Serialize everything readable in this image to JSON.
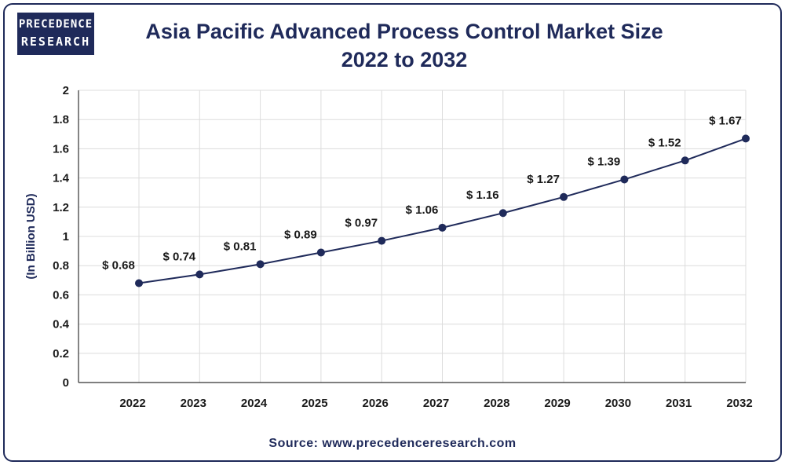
{
  "logo": {
    "line1": "PRECEDENCE",
    "line2": "RESEARCH"
  },
  "title_line1": "Asia Pacific Advanced Process Control Market Size",
  "title_line2": "2022 to 2032",
  "source": "Source: www.precedenceresearch.com",
  "colors": {
    "line": "#1f2a5a",
    "marker": "#1f2a5a",
    "grid": "#dcdcdc",
    "axis": "#333333"
  },
  "chart_data": {
    "type": "line",
    "title": "Asia Pacific Advanced Process Control Market Size 2022 to 2032",
    "xlabel": "",
    "ylabel": "(In Billion USD)",
    "categories": [
      "2022",
      "2023",
      "2024",
      "2025",
      "2026",
      "2027",
      "2028",
      "2029",
      "2030",
      "2031",
      "2032"
    ],
    "values": [
      0.68,
      0.74,
      0.81,
      0.89,
      0.97,
      1.06,
      1.16,
      1.27,
      1.39,
      1.52,
      1.67
    ],
    "data_labels": [
      "$ 0.68",
      "$ 0.74",
      "$ 0.81",
      "$ 0.89",
      "$ 0.97",
      "$ 1.06",
      "$ 1.16",
      "$ 1.27",
      "$ 1.39",
      "$ 1.52",
      "$ 1.67"
    ],
    "yticks": [
      0,
      0.2,
      0.4,
      0.6,
      0.8,
      1,
      1.2,
      1.4,
      1.6,
      1.8,
      2
    ],
    "ytick_labels": [
      "0",
      "0.2",
      "0.4",
      "0.6",
      "0.8",
      "1",
      "1.2",
      "1.4",
      "1.6",
      "1.8",
      "2"
    ],
    "ylim": [
      0,
      2
    ],
    "grid": true
  }
}
